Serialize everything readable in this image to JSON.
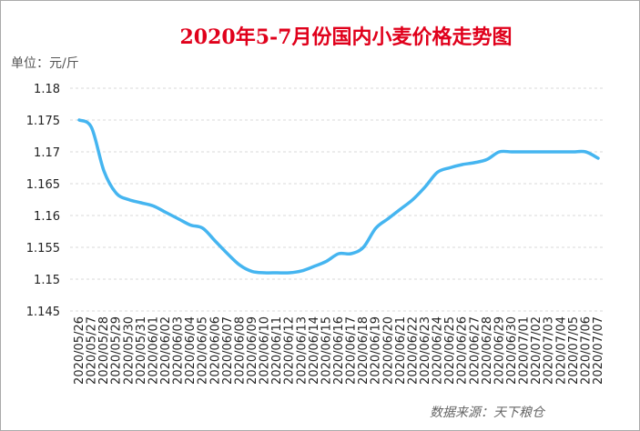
{
  "chart_data": {
    "type": "line",
    "title": "2020年5-7月份国内小麦价格走势图",
    "unit_label": "单位：元/斤",
    "source": "数据来源：天下粮仓",
    "categories": [
      "2020/05/26",
      "2020/05/27",
      "2020/05/28",
      "2020/05/29",
      "2020/05/30",
      "2020/05/31",
      "2020/06/01",
      "2020/06/02",
      "2020/06/03",
      "2020/06/04",
      "2020/06/05",
      "2020/06/06",
      "2020/06/07",
      "2020/06/08",
      "2020/06/09",
      "2020/06/10",
      "2020/06/11",
      "2020/06/12",
      "2020/06/13",
      "2020/06/14",
      "2020/06/15",
      "2020/06/16",
      "2020/06/17",
      "2020/06/18",
      "2020/06/19",
      "2020/06/20",
      "2020/06/21",
      "2020/06/22",
      "2020/06/23",
      "2020/06/24",
      "2020/06/25",
      "2020/06/26",
      "2020/06/27",
      "2020/06/28",
      "2020/06/29",
      "2020/06/30",
      "2020/07/01",
      "2020/07/02",
      "2020/07/03",
      "2020/07/04",
      "2020/07/05",
      "2020/07/06",
      "2020/07/07"
    ],
    "values": [
      1.175,
      1.1738,
      1.167,
      1.1635,
      1.1625,
      1.162,
      1.1615,
      1.1605,
      1.1595,
      1.1585,
      1.158,
      1.156,
      1.154,
      1.1522,
      1.1512,
      1.151,
      1.151,
      1.151,
      1.1513,
      1.152,
      1.1528,
      1.154,
      1.154,
      1.155,
      1.158,
      1.1595,
      1.161,
      1.1625,
      1.1645,
      1.1668,
      1.1675,
      1.168,
      1.1683,
      1.1688,
      1.17,
      1.17,
      1.17,
      1.17,
      1.17,
      1.17,
      1.17,
      1.17,
      1.169
    ],
    "color": "#45b5f0",
    "ylim": [
      1.145,
      1.18
    ],
    "yticks": [
      1.145,
      1.15,
      1.155,
      1.16,
      1.165,
      1.17,
      1.175,
      1.18
    ],
    "grid": true
  }
}
